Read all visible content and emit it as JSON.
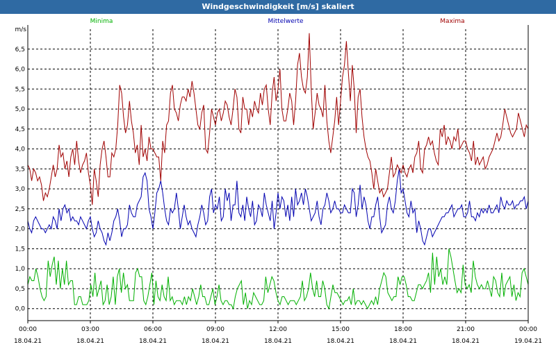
{
  "window": {
    "title": "Windgeschwindigkeit [m/s] skaliert"
  },
  "chart_data": {
    "type": "line",
    "title": "Windgeschwindigkeit [m/s] skaliert",
    "ylabel": "m/s",
    "xlabel": "",
    "ylim": [
      -0.3,
      7.0
    ],
    "xlim": [
      0,
      24
    ],
    "grid": true,
    "legend_position": "top",
    "x_ticks": [
      {
        "hour": 0,
        "time": "00:00",
        "date": "18.04.21"
      },
      {
        "hour": 3,
        "time": "03:00",
        "date": "18.04.21"
      },
      {
        "hour": 6,
        "time": "06:00",
        "date": "18.04.21"
      },
      {
        "hour": 9,
        "time": "09:00",
        "date": "18.04.21"
      },
      {
        "hour": 12,
        "time": "12:00",
        "date": "18.04.21"
      },
      {
        "hour": 15,
        "time": "15:00",
        "date": "18.04.21"
      },
      {
        "hour": 18,
        "time": "18:00",
        "date": "18.04.21"
      },
      {
        "hour": 21,
        "time": "21:00",
        "date": "18.04.21"
      },
      {
        "hour": 24,
        "time": "00:00",
        "date": "19.04.21"
      }
    ],
    "y_ticks": [
      "0,0",
      "0,5",
      "1,0",
      "1,5",
      "2,0",
      "2,5",
      "3,0",
      "3,5",
      "4,0",
      "4,5",
      "5,0",
      "5,5",
      "6,0",
      "6,5"
    ],
    "y_tick_values": [
      0,
      0.5,
      1,
      1.5,
      2,
      2.5,
      3,
      3.5,
      4,
      4.5,
      5,
      5.5,
      6,
      6.5
    ],
    "series": [
      {
        "name": "Minima",
        "color": "#00b000",
        "values": [
          0.6,
          0.8,
          0.7,
          0.7,
          1.0,
          0.8,
          0.5,
          0.3,
          0.2,
          0.3,
          1.2,
          0.8,
          1.1,
          1.3,
          0.6,
          1.2,
          0.5,
          1.0,
          0.6,
          1.2,
          0.6,
          0.7,
          0.7,
          0.1,
          0.1,
          0.3,
          0.3,
          0.1,
          0.1,
          0.1,
          0.2,
          0.6,
          0.3,
          0.9,
          0.3,
          0.5,
          0.7,
          0.1,
          0.2,
          0.6,
          0.1,
          0.3,
          0.8,
          0.1,
          0.8,
          1.0,
          0.4,
          0.9,
          0.5,
          0.6,
          0.2,
          0.2,
          0.2,
          0.9,
          1.0,
          0.8,
          0.8,
          0.2,
          0.1,
          0.3,
          0.6,
          0.9,
          0.1,
          0.7,
          0.3,
          0.2,
          0.6,
          0.3,
          0.2,
          0.8,
          0.2,
          0.3,
          0.1,
          0.2,
          0.2,
          0.2,
          0.1,
          0.3,
          0.1,
          0.3,
          0.2,
          0.5,
          0.3,
          0.1,
          0.3,
          0.6,
          0.3,
          0.3,
          0.1,
          0.1,
          0.3,
          0.5,
          0.1,
          0.3,
          0.6,
          0.2,
          0.1,
          0.2,
          0.2,
          0.1,
          0.1,
          0.0,
          0.3,
          0.5,
          0.6,
          0.7,
          0.1,
          0.4,
          0.0,
          0.2,
          0.1,
          0.4,
          0.3,
          0.2,
          0.1,
          0.1,
          0.2,
          0.8,
          0.4,
          0.6,
          0.8,
          0.7,
          0.4,
          0.2,
          0.1,
          0.3,
          0.3,
          0.2,
          0.1,
          0.2,
          0.2,
          0.2,
          0.1,
          0.2,
          0.3,
          0.7,
          0.2,
          0.3,
          0.5,
          0.9,
          0.5,
          0.3,
          0.7,
          0.3,
          0.3,
          0.7,
          0.5,
          0.1,
          0.0,
          0.3,
          0.6,
          0.4,
          0.4,
          0.3,
          0.2,
          0.1,
          0.2,
          0.2,
          0.3,
          0.1,
          0.5,
          0.1,
          0.2,
          0.2,
          0.1,
          0.2,
          0.1,
          0.0,
          0.1,
          0.2,
          0.1,
          0.3,
          0.1,
          0.5,
          0.7,
          0.9,
          0.8,
          0.4,
          0.3,
          0.2,
          0.3,
          0.3,
          0.8,
          0.6,
          0.8,
          0.8,
          0.6,
          0.3,
          0.3,
          0.2,
          0.2,
          0.4,
          0.6,
          0.6,
          0.5,
          0.6,
          0.7,
          0.9,
          0.4,
          1.4,
          0.6,
          1.3,
          0.8,
          1.0,
          0.6,
          0.8,
          0.6,
          1.5,
          1.3,
          1.0,
          0.7,
          0.4,
          0.5,
          0.4,
          1.1,
          0.6,
          0.5,
          0.6,
          0.4,
          1.2,
          0.8,
          0.6,
          0.5,
          0.6,
          0.5,
          0.5,
          0.7,
          0.5,
          0.3,
          0.8,
          0.7,
          0.4,
          0.3,
          0.9,
          0.3,
          0.6,
          0.7,
          0.8,
          0.3,
          0.6,
          0.2,
          0.4,
          0.3,
          0.9,
          1.0,
          0.8,
          0.6
        ]
      },
      {
        "name": "Mittelwerte",
        "color": "#0000b0",
        "values": [
          2.2,
          2.0,
          1.9,
          2.2,
          2.3,
          2.2,
          2.1,
          2.0,
          2.0,
          1.9,
          2.0,
          2.1,
          2.0,
          2.3,
          2.2,
          2.0,
          2.5,
          2.2,
          2.5,
          2.6,
          2.4,
          2.5,
          2.2,
          2.3,
          2.2,
          2.2,
          2.1,
          2.3,
          2.2,
          2.1,
          2.0,
          2.2,
          2.3,
          2.0,
          1.8,
          1.9,
          2.2,
          2.0,
          1.9,
          1.7,
          1.6,
          1.9,
          1.7,
          1.9,
          2.2,
          2.3,
          2.5,
          2.2,
          1.8,
          2.0,
          2.0,
          2.1,
          2.6,
          2.4,
          2.3,
          2.3,
          2.6,
          2.7,
          2.8,
          3.3,
          3.4,
          3.2,
          2.5,
          2.3,
          2.0,
          2.4,
          2.9,
          3.0,
          3.2,
          2.9,
          2.5,
          2.2,
          2.1,
          2.5,
          2.4,
          2.5,
          2.9,
          2.5,
          2.0,
          2.3,
          2.6,
          2.3,
          2.1,
          2.2,
          2.0,
          1.9,
          1.8,
          2.1,
          2.3,
          2.6,
          2.4,
          2.1,
          2.2,
          2.8,
          3.0,
          2.4,
          2.6,
          2.5,
          2.8,
          2.2,
          2.3,
          3.0,
          2.7,
          2.9,
          2.2,
          2.6,
          2.6,
          3.2,
          2.4,
          2.3,
          2.6,
          2.2,
          2.8,
          2.5,
          2.3,
          2.7,
          2.1,
          2.2,
          2.6,
          2.5,
          2.3,
          2.9,
          2.6,
          2.4,
          2.2,
          2.7,
          2.0,
          2.4,
          2.9,
          2.5,
          2.8,
          2.7,
          2.3,
          2.6,
          2.2,
          2.8,
          2.3,
          3.0,
          2.6,
          2.7,
          2.9,
          2.6,
          3.0,
          2.8,
          2.5,
          2.2,
          2.3,
          2.4,
          2.7,
          2.3,
          2.1,
          2.5,
          2.6,
          2.9,
          2.7,
          2.4,
          2.5,
          2.7,
          2.5,
          2.5,
          2.4,
          2.4,
          2.6,
          2.5,
          2.4,
          2.4,
          3.0,
          2.9,
          2.3,
          2.6,
          3.1,
          2.5,
          2.8,
          2.6,
          2.2,
          2.0,
          2.3,
          2.3,
          2.6,
          2.8,
          2.3,
          1.9,
          2.0,
          2.1,
          2.6,
          2.8,
          2.5,
          2.4,
          2.7,
          3.2,
          3.5,
          2.9,
          3.0,
          2.7,
          2.4,
          2.3,
          2.7,
          2.4,
          2.5,
          1.9,
          2.2,
          2.0,
          1.7,
          1.6,
          1.8,
          2.0,
          2.0,
          1.8,
          1.9,
          2.0,
          2.1,
          2.2,
          2.3,
          2.3,
          2.4,
          2.4,
          2.5,
          2.6,
          2.3,
          2.4,
          2.5,
          2.5,
          2.6,
          2.3,
          2.3,
          2.4,
          2.7,
          2.3,
          2.3,
          2.2,
          2.4,
          2.3,
          2.5,
          2.4,
          2.5,
          2.4,
          2.6,
          2.4,
          2.4,
          2.5,
          2.6,
          2.4,
          2.8,
          2.6,
          2.5,
          2.7,
          2.6,
          2.6,
          2.7,
          2.5,
          2.6,
          2.6,
          2.7,
          2.7,
          2.8,
          2.5,
          2.7
        ]
      },
      {
        "name": "Maxima",
        "color": "#a00000",
        "values": [
          3.6,
          3.5,
          3.2,
          3.5,
          3.4,
          3.2,
          3.3,
          3.1,
          2.7,
          2.9,
          2.8,
          3.0,
          3.3,
          3.6,
          3.3,
          3.5,
          4.1,
          3.8,
          3.9,
          3.5,
          3.7,
          3.3,
          3.8,
          4.0,
          3.6,
          4.2,
          3.7,
          3.4,
          3.6,
          3.7,
          3.9,
          3.4,
          3.1,
          2.6,
          3.5,
          3.2,
          2.8,
          3.6,
          4.0,
          4.2,
          3.8,
          3.3,
          3.3,
          3.9,
          3.8,
          4.0,
          4.6,
          5.6,
          5.4,
          4.8,
          4.4,
          4.6,
          5.2,
          4.7,
          4.4,
          3.9,
          4.1,
          3.6,
          4.6,
          3.8,
          4.0,
          3.7,
          4.3,
          4.0,
          4.0,
          3.9,
          3.8,
          3.8,
          3.2,
          4.2,
          3.9,
          4.6,
          4.7,
          5.4,
          5.6,
          5.0,
          4.9,
          4.7,
          5.1,
          5.3,
          5.3,
          5.2,
          5.5,
          5.3,
          5.7,
          5.4,
          5.0,
          4.6,
          4.5,
          4.9,
          5.1,
          4.0,
          3.9,
          4.4,
          5.0,
          4.8,
          4.6,
          4.9,
          5.0,
          4.7,
          4.9,
          5.2,
          5.1,
          4.8,
          4.6,
          5.0,
          5.5,
          5.3,
          4.5,
          4.4,
          5.3,
          5.0,
          5.0,
          4.6,
          5.0,
          4.8,
          5.2,
          5.0,
          4.9,
          5.4,
          5.1,
          5.5,
          5.6,
          5.0,
          4.6,
          5.4,
          5.8,
          5.2,
          5.5,
          6.0,
          5.0,
          4.7,
          4.7,
          5.0,
          5.4,
          5.2,
          4.6,
          5.2,
          6.1,
          6.4,
          5.8,
          5.5,
          5.4,
          5.8,
          6.9,
          5.5,
          4.5,
          4.9,
          5.4,
          5.1,
          5.0,
          4.8,
          5.6,
          4.7,
          4.2,
          3.9,
          4.3,
          4.7,
          5.3,
          4.6,
          5.2,
          5.8,
          6.1,
          6.7,
          5.9,
          5.2,
          6.1,
          5.5,
          4.4,
          5.3,
          5.5,
          4.8,
          4.3,
          4.0,
          3.8,
          3.7,
          3.4,
          3.0,
          3.5,
          3.2,
          2.9,
          3.0,
          2.8,
          2.9,
          3.0,
          3.4,
          3.8,
          3.3,
          3.4,
          3.6,
          3.5,
          3.4,
          3.6,
          3.4,
          3.3,
          3.5,
          3.6,
          3.4,
          3.8,
          3.9,
          4.2,
          3.5,
          3.4,
          4.0,
          4.1,
          4.3,
          4.1,
          4.2,
          3.9,
          3.7,
          3.6,
          4.5,
          4.3,
          4.6,
          4.1,
          4.3,
          4.2,
          4.0,
          4.3,
          4.2,
          4.5,
          4.0,
          4.1,
          4.2,
          4.2,
          4.0,
          3.9,
          3.7,
          4.2,
          3.6,
          3.8,
          3.6,
          3.7,
          3.8,
          3.5,
          3.6,
          3.8,
          3.9,
          4.0,
          4.2,
          4.4,
          4.2,
          4.3,
          4.6,
          5.0,
          4.8,
          4.6,
          4.4,
          4.3,
          4.4,
          4.5,
          4.9,
          4.7,
          4.5,
          4.3,
          4.6,
          4.5
        ]
      }
    ]
  }
}
